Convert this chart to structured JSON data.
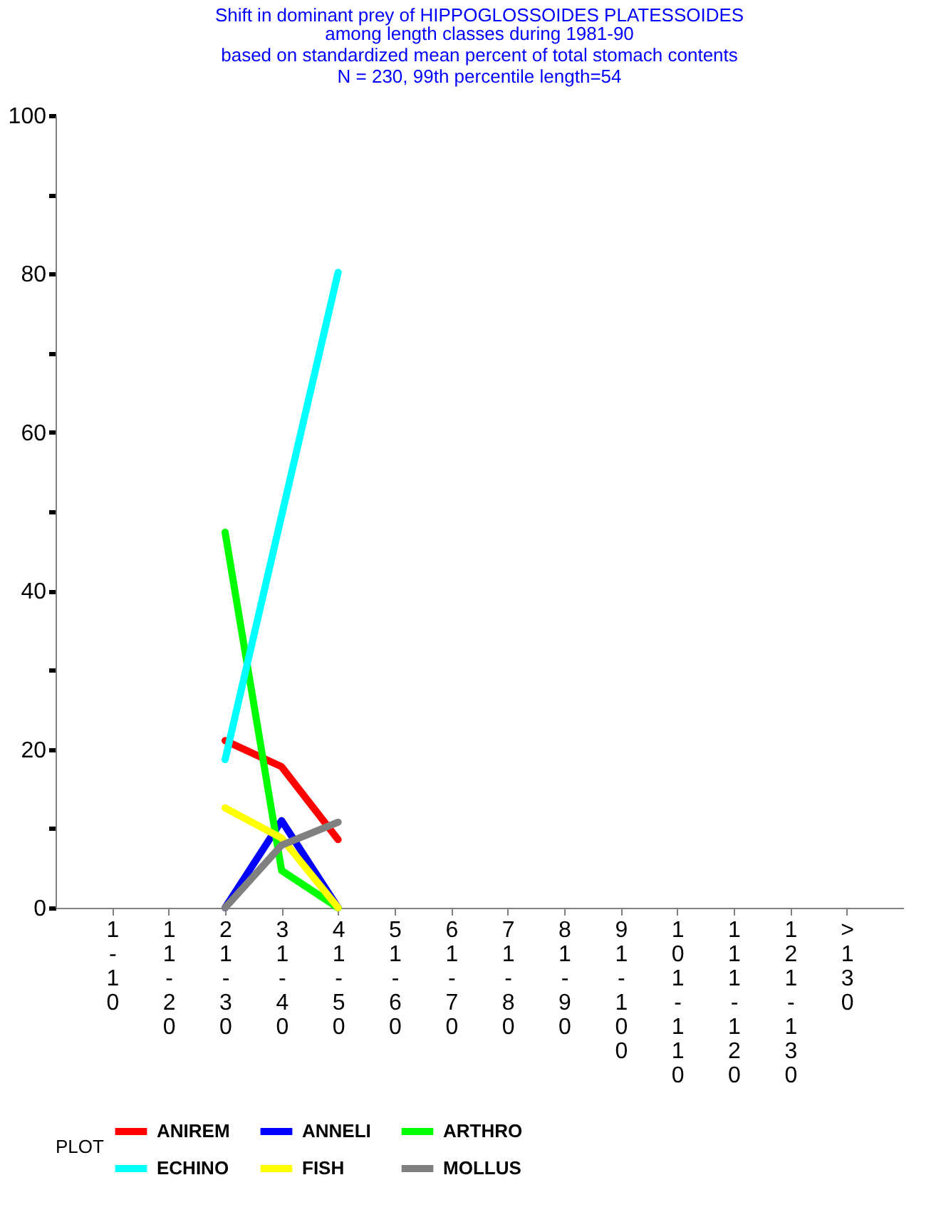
{
  "chart_data": {
    "type": "line",
    "title": "Shift in dominant prey of HIPPOGLOSSOIDES PLATESSOIDES",
    "subtitle": "among length classes during 1981-90\nbased on standardized mean percent of  total stomach contents\nN = 230, 99th percentile  length=54",
    "categories": [
      "1-10",
      "11-20",
      "21-30",
      "31-40",
      "41-50",
      "51-60",
      "61-70",
      "71-80",
      "81-90",
      "91-100",
      "101-110",
      "111-120",
      "121-130",
      ">130"
    ],
    "legend_title": "PLOT",
    "legend": "bottom",
    "grid": false,
    "line_style": "solid",
    "ylim": [
      0,
      100
    ],
    "yticks": [
      0,
      {
        "value": 10,
        "label": null
      },
      20,
      {
        "value": 30,
        "label": null
      },
      40,
      {
        "value": 50,
        "label": null
      },
      60,
      {
        "value": 70,
        "label": null
      },
      80,
      {
        "value": 90,
        "label": null
      },
      100
    ],
    "series": [
      {
        "name": "ANIREM",
        "color": "#ff0000",
        "values": [
          null,
          null,
          21.1,
          17.8,
          8.6,
          null,
          null,
          null,
          null,
          null,
          null,
          null,
          null,
          null
        ]
      },
      {
        "name": "ANNELI",
        "color": "#0000ff",
        "values": [
          null,
          null,
          0,
          11,
          0,
          null,
          null,
          null,
          null,
          null,
          null,
          null,
          null,
          null
        ]
      },
      {
        "name": "ARTHRO",
        "color": "#00ff00",
        "values": [
          null,
          null,
          47.4,
          4.7,
          0,
          null,
          null,
          null,
          null,
          null,
          null,
          null,
          null,
          null
        ]
      },
      {
        "name": "ECHINO",
        "color": "#00ffff",
        "values": [
          null,
          null,
          18.7,
          49.5,
          80.2,
          null,
          null,
          null,
          null,
          null,
          null,
          null,
          null,
          null
        ]
      },
      {
        "name": "FISH",
        "color": "#ffff00",
        "values": [
          null,
          null,
          12.6,
          8.8,
          0,
          null,
          null,
          null,
          null,
          null,
          null,
          null,
          null,
          null
        ]
      },
      {
        "name": "MOLLUS",
        "color": "#808080",
        "values": [
          null,
          null,
          0,
          7.9,
          10.8,
          null,
          null,
          null,
          null,
          null,
          null,
          null,
          null,
          null
        ]
      }
    ]
  }
}
